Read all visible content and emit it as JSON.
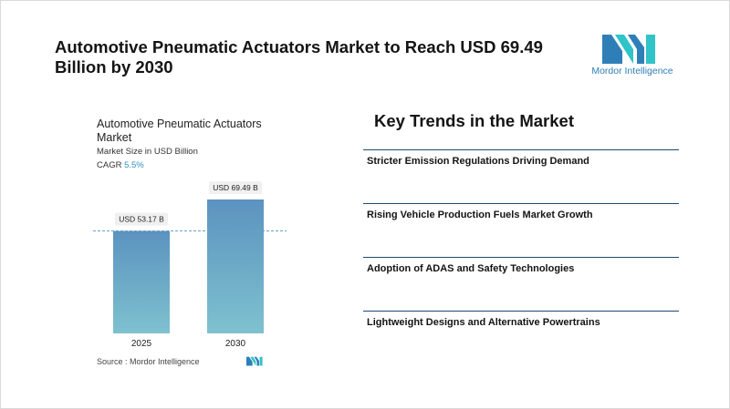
{
  "headline": "Automotive Pneumatic Actuators Market to Reach USD 69.49 Billion by 2030",
  "brand": {
    "name": "Mordor Intelligence",
    "color": "#2e7fb8",
    "accent": "#30c3c8"
  },
  "chart": {
    "title": "Automotive Pneumatic Actuators Market",
    "subtitle": "Market Size in USD Billion",
    "cagr_label": "CAGR",
    "cagr_value": "5.5%",
    "source": "Source :  Mordor Intelligence"
  },
  "chart_data": {
    "type": "bar",
    "categories": [
      "2025",
      "2030"
    ],
    "values": [
      53.17,
      69.49
    ],
    "value_labels": [
      "USD 53.17 B",
      "USD 69.49 B"
    ],
    "title": "Automotive Pneumatic Actuators Market",
    "ylabel": "Market Size in USD Billion",
    "bar_gradient": [
      "#5b93bf",
      "#7fc1cf"
    ],
    "reference_line": {
      "value": 53.17,
      "style": "dashed",
      "color": "#6a9fc7"
    },
    "grid": false
  },
  "trends": {
    "title": "Key Trends in the Market",
    "items": [
      "Stricter Emission Regulations Driving Demand",
      "Rising Vehicle Production Fuels Market Growth",
      "Adoption of ADAS and Safety Technologies",
      "Lightweight Designs and Alternative Powertrains"
    ]
  }
}
